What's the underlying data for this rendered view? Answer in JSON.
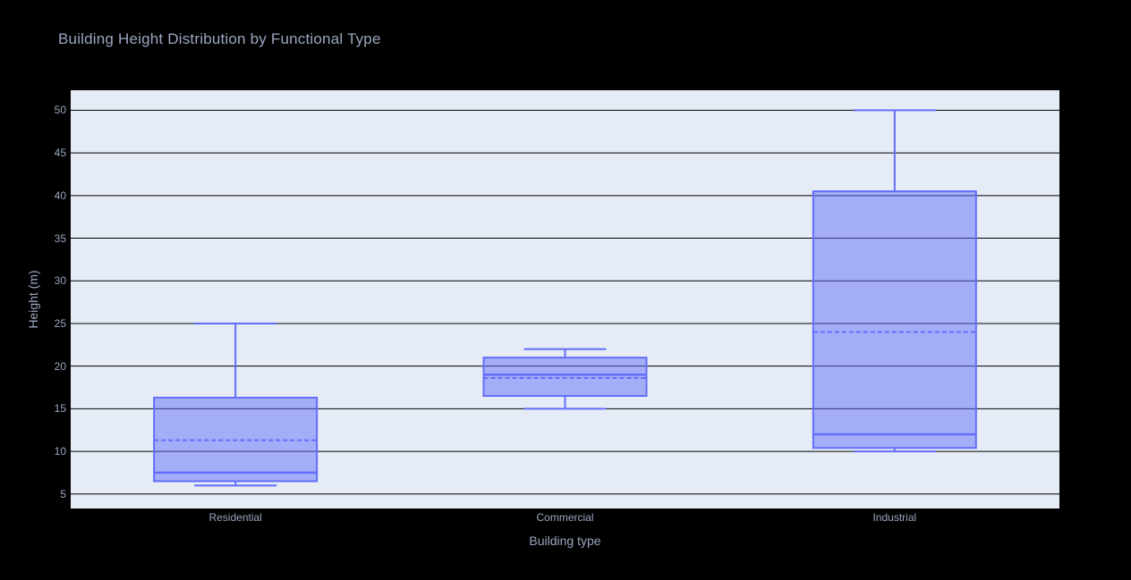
{
  "page": {
    "background": "#000000"
  },
  "chart_data": {
    "type": "box",
    "title": "Building Height Distribution by Functional Type",
    "xlabel": "Building type",
    "ylabel": "Height (m)",
    "categories": [
      "Residential",
      "Commercial",
      "Industrial"
    ],
    "series": [
      {
        "name": "Residential",
        "min": 6,
        "q1": 6.5,
        "median": 7.5,
        "mean": 11.3,
        "q3": 16.3,
        "max": 25
      },
      {
        "name": "Commercial",
        "min": 15,
        "q1": 16.5,
        "median": 19,
        "mean": 18.6,
        "q3": 21,
        "max": 22
      },
      {
        "name": "Industrial",
        "min": 10,
        "q1": 10.4,
        "median": 12,
        "mean": 24,
        "q3": 40.5,
        "max": 50
      }
    ],
    "show_mean_dashed_line": true,
    "yticks": [
      5,
      10,
      15,
      20,
      25,
      30,
      35,
      40,
      45,
      50
    ],
    "ylim": [
      3.3,
      52.35
    ],
    "grid": true,
    "legend": "none",
    "colors": {
      "paper_bg": "#000000",
      "plot_bg": "#E5ECF6",
      "gridline": "#000000",
      "box_line": "#636EFA",
      "box_fill": "rgba(99,110,250,0.5)",
      "text": "#9aa6bf"
    }
  }
}
